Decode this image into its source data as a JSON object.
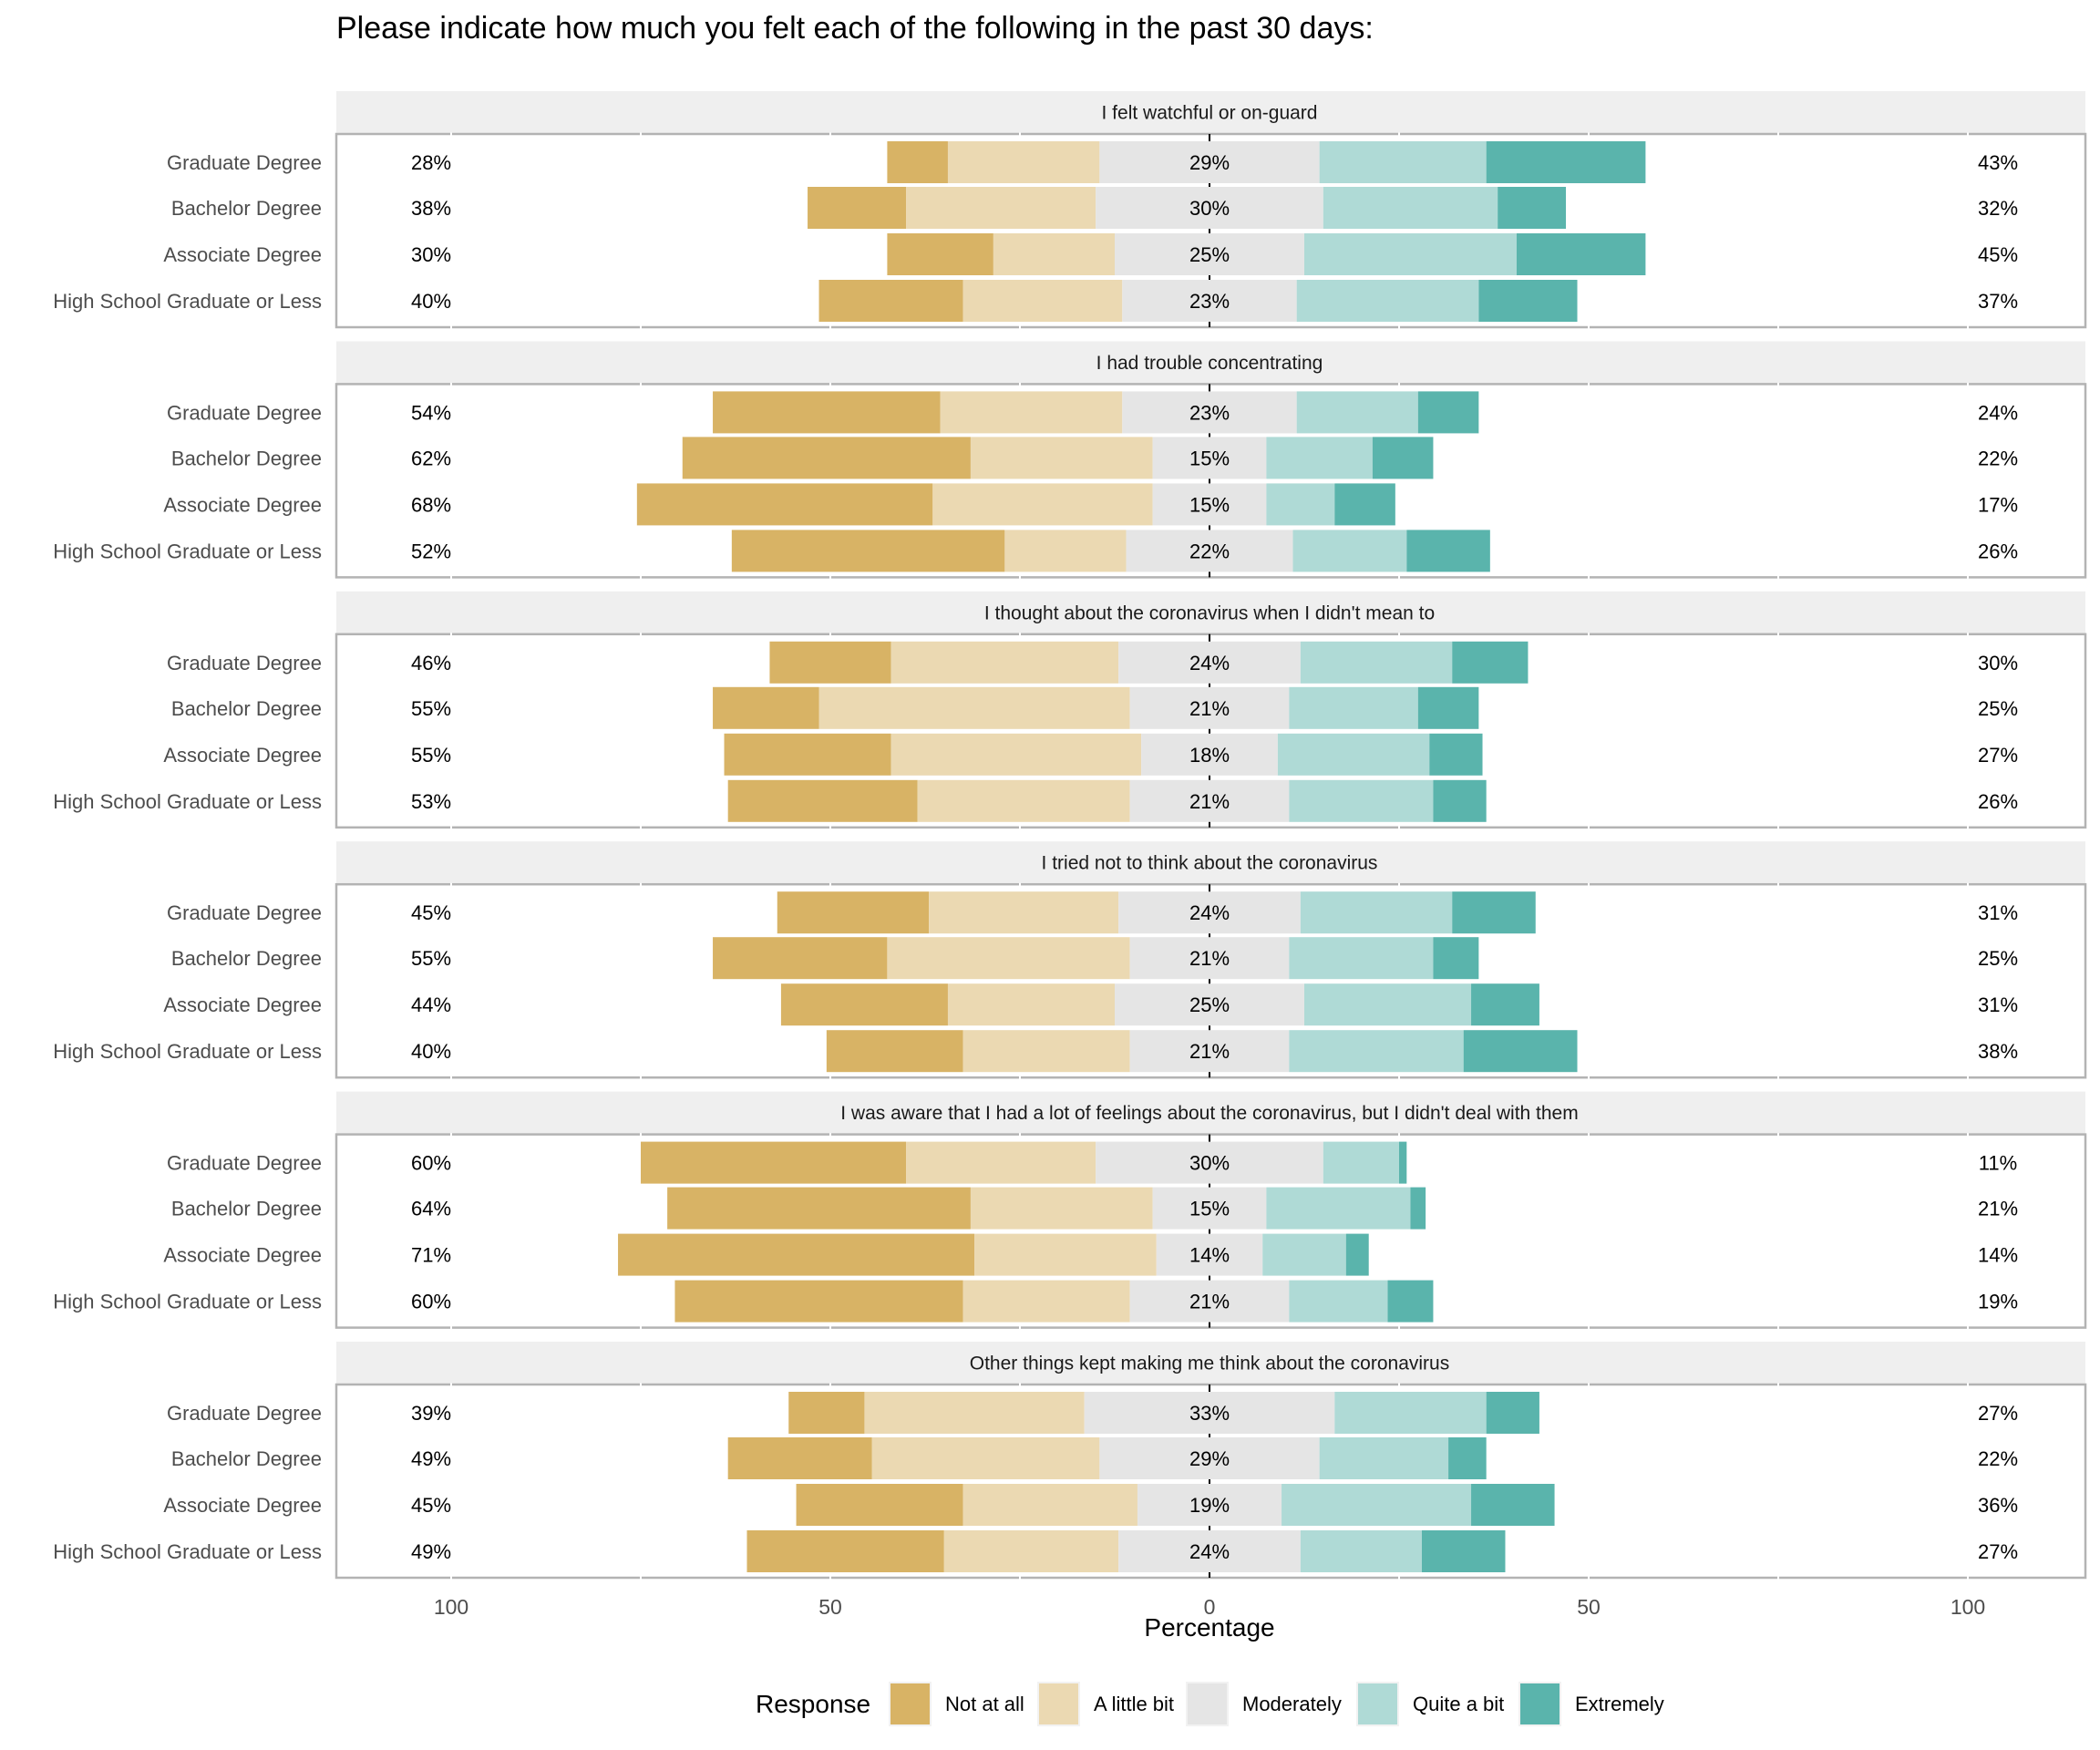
{
  "chart_data": {
    "type": "bar",
    "subtype": "diverging-stacked-horizontal",
    "title": "Please indicate how much you felt each of the following in the past 30 days:",
    "xlabel": "Percentage",
    "ylabel": "",
    "xlim": [
      -115,
      115
    ],
    "x_ticks": [
      -100,
      -50,
      0,
      50,
      100
    ],
    "x_tick_labels": [
      "100",
      "50",
      "0",
      "50",
      "100"
    ],
    "grid": true,
    "legend": {
      "title": "Response",
      "position": "bottom",
      "entries": [
        "Not at all",
        "A little bit",
        "Moderately",
        "Quite a bit",
        "Extremely"
      ]
    },
    "colors": {
      "Not at all": "#d8b365",
      "A little bit": "#ebd9b2",
      "Moderately": "#e5e5e5",
      "Quite a bit": "#afdad6",
      "Extremely": "#5ab4ac"
    },
    "categories": [
      "Graduate Degree",
      "Bachelor Degree",
      "Associate Degree",
      "High School Graduate or Less"
    ],
    "panels": [
      {
        "title": "I felt watchful or on-guard",
        "rows": [
          {
            "label": "Graduate Degree",
            "values": [
              8,
              20,
              29,
              22,
              21
            ],
            "low": "28%",
            "neutral": "29%",
            "high": "43%"
          },
          {
            "label": "Bachelor Degree",
            "values": [
              13,
              25,
              30,
              23,
              9
            ],
            "low": "38%",
            "neutral": "30%",
            "high": "32%"
          },
          {
            "label": "Associate Degree",
            "values": [
              14,
              16,
              25,
              28,
              17
            ],
            "low": "30%",
            "neutral": "25%",
            "high": "45%"
          },
          {
            "label": "High School Graduate or Less",
            "values": [
              19,
              21,
              23,
              24,
              13
            ],
            "low": "40%",
            "neutral": "23%",
            "high": "37%"
          }
        ]
      },
      {
        "title": "I had trouble concentrating",
        "rows": [
          {
            "label": "Graduate Degree",
            "values": [
              30,
              24,
              23,
              16,
              8
            ],
            "low": "54%",
            "neutral": "23%",
            "high": "24%"
          },
          {
            "label": "Bachelor Degree",
            "values": [
              38,
              24,
              15,
              14,
              8
            ],
            "low": "62%",
            "neutral": "15%",
            "high": "22%"
          },
          {
            "label": "Associate Degree",
            "values": [
              39,
              29,
              15,
              9,
              8
            ],
            "low": "68%",
            "neutral": "15%",
            "high": "17%"
          },
          {
            "label": "High School Graduate or Less",
            "values": [
              36,
              16,
              22,
              15,
              11
            ],
            "low": "52%",
            "neutral": "22%",
            "high": "26%"
          }
        ]
      },
      {
        "title": "I thought about the coronavirus when I didn't mean to",
        "rows": [
          {
            "label": "Graduate Degree",
            "values": [
              16,
              30,
              24,
              20,
              10
            ],
            "low": "46%",
            "neutral": "24%",
            "high": "30%"
          },
          {
            "label": "Bachelor Degree",
            "values": [
              14,
              41,
              21,
              17,
              8
            ],
            "low": "55%",
            "neutral": "21%",
            "high": "25%"
          },
          {
            "label": "Associate Degree",
            "values": [
              22,
              33,
              18,
              20,
              7
            ],
            "low": "55%",
            "neutral": "18%",
            "high": "27%"
          },
          {
            "label": "High School Graduate or Less",
            "values": [
              25,
              28,
              21,
              19,
              7
            ],
            "low": "53%",
            "neutral": "21%",
            "high": "26%"
          }
        ]
      },
      {
        "title": "I tried not to think about the coronavirus",
        "rows": [
          {
            "label": "Graduate Degree",
            "values": [
              20,
              25,
              24,
              20,
              11
            ],
            "low": "45%",
            "neutral": "24%",
            "high": "31%"
          },
          {
            "label": "Bachelor Degree",
            "values": [
              23,
              32,
              21,
              19,
              6
            ],
            "low": "55%",
            "neutral": "21%",
            "high": "25%"
          },
          {
            "label": "Associate Degree",
            "values": [
              22,
              22,
              25,
              22,
              9
            ],
            "low": "44%",
            "neutral": "25%",
            "high": "31%"
          },
          {
            "label": "High School Graduate or Less",
            "values": [
              18,
              22,
              21,
              23,
              15
            ],
            "low": "40%",
            "neutral": "21%",
            "high": "38%"
          }
        ]
      },
      {
        "title": "I was aware that I had a lot of feelings about the coronavirus, but I didn't deal with them",
        "rows": [
          {
            "label": "Graduate Degree",
            "values": [
              35,
              25,
              30,
              10,
              1
            ],
            "low": "60%",
            "neutral": "30%",
            "high": "11%"
          },
          {
            "label": "Bachelor Degree",
            "values": [
              40,
              24,
              15,
              19,
              2
            ],
            "low": "64%",
            "neutral": "15%",
            "high": "21%"
          },
          {
            "label": "Associate Degree",
            "values": [
              47,
              24,
              14,
              11,
              3
            ],
            "low": "71%",
            "neutral": "14%",
            "high": "14%"
          },
          {
            "label": "High School Graduate or Less",
            "values": [
              38,
              22,
              21,
              13,
              6
            ],
            "low": "60%",
            "neutral": "21%",
            "high": "19%"
          }
        ]
      },
      {
        "title": "Other things kept making me think about the coronavirus",
        "rows": [
          {
            "label": "Graduate Degree",
            "values": [
              10,
              29,
              33,
              20,
              7
            ],
            "low": "39%",
            "neutral": "33%",
            "high": "27%"
          },
          {
            "label": "Bachelor Degree",
            "values": [
              19,
              30,
              29,
              17,
              5
            ],
            "low": "49%",
            "neutral": "29%",
            "high": "22%"
          },
          {
            "label": "Associate Degree",
            "values": [
              22,
              23,
              19,
              25,
              11
            ],
            "low": "45%",
            "neutral": "19%",
            "high": "36%"
          },
          {
            "label": "High School Graduate or Less",
            "values": [
              26,
              23,
              24,
              16,
              11
            ],
            "low": "49%",
            "neutral": "24%",
            "high": "27%"
          }
        ]
      }
    ]
  }
}
